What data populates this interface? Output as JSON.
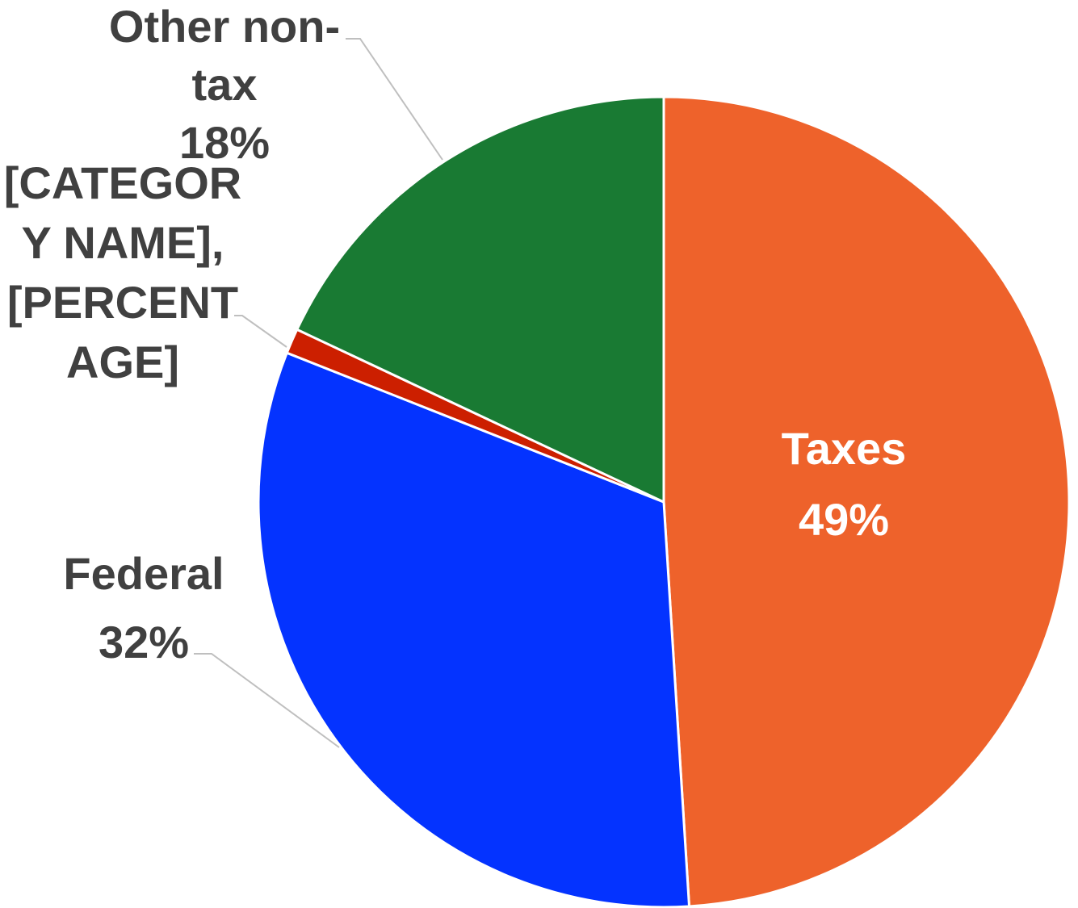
{
  "chart_data": {
    "type": "pie",
    "title": "",
    "start_angle_deg": 0,
    "direction": "clockwise",
    "slices": [
      {
        "name": "Taxes",
        "value": 49,
        "percent_label": "49%",
        "color": "#EE622B",
        "label_color": "#FFFFFF",
        "label_position": "inside"
      },
      {
        "name": "Federal",
        "value": 32,
        "percent_label": "32%",
        "color": "#0433FF",
        "label_color": "#404040",
        "label_position": "outside-left"
      },
      {
        "name": "[CATEGORY NAME]",
        "value": 1,
        "percent_label": "[PERCENTAGE]",
        "color": "#CC1F00",
        "label_color": "#404040",
        "label_position": "outside-left"
      },
      {
        "name": "Other non-tax",
        "value": 18,
        "percent_label": "18%",
        "color": "#197A33",
        "label_color": "#404040",
        "label_position": "outside-top"
      }
    ],
    "labels": [
      {
        "lines": [
          "Taxes",
          "49%"
        ]
      },
      {
        "lines": [
          "Federal",
          "32%"
        ]
      },
      {
        "lines": [
          "[CATEGOR",
          "Y NAME],",
          "[PERCENT",
          "AGE]"
        ]
      },
      {
        "lines": [
          "Other non-",
          "tax",
          "18%"
        ]
      }
    ],
    "legend": "none"
  }
}
